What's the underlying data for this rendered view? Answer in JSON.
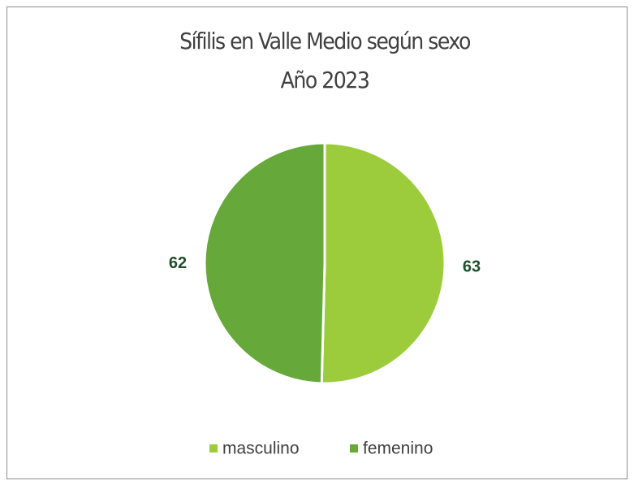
{
  "chart_data": {
    "type": "pie",
    "title": [
      "Sífilis en Valle Medio según sexo",
      "Año 2023"
    ],
    "categories": [
      "masculino",
      "femenino"
    ],
    "values": [
      63,
      62
    ],
    "colors": [
      "#9ccc3c",
      "#66a83a"
    ],
    "legend": "bottom"
  }
}
